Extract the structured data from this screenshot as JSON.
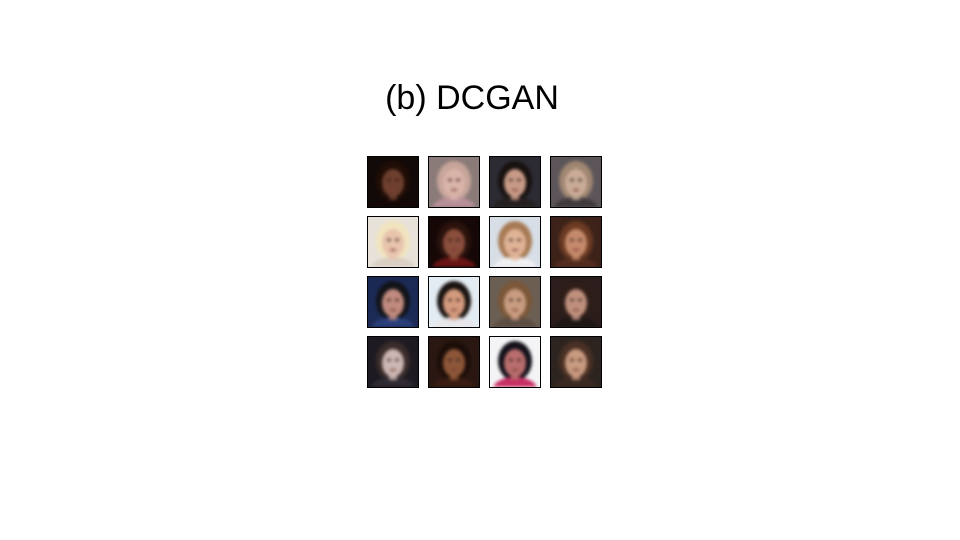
{
  "title": "(b) DCGAN",
  "samples": [
    {
      "row": 1,
      "col": 1,
      "bg": "#120a08",
      "hair": "#1f0d06",
      "skin": "#6e3f2e",
      "shirt": "#140806"
    },
    {
      "row": 1,
      "col": 2,
      "bg": "#8a7a78",
      "hair": "#c7a59a",
      "skin": "#d9b4a8",
      "shirt": "#b8909a"
    },
    {
      "row": 1,
      "col": 3,
      "bg": "#2c2a33",
      "hair": "#17110f",
      "skin": "#c79a86",
      "shirt": "#25201f"
    },
    {
      "row": 1,
      "col": 4,
      "bg": "#5c5559",
      "hair": "#9f8671",
      "skin": "#c9ab98",
      "shirt": "#3f3a3c"
    },
    {
      "row": 2,
      "col": 1,
      "bg": "#e7e2d9",
      "hair": "#f2e4bf",
      "skin": "#e8c4ad",
      "shirt": "#d9cfc3"
    },
    {
      "row": 2,
      "col": 2,
      "bg": "#160807",
      "hair": "#2b120c",
      "skin": "#8a4e3c",
      "shirt": "#6a1414"
    },
    {
      "row": 2,
      "col": 3,
      "bg": "#d7dee6",
      "hair": "#a77a55",
      "skin": "#e0b397",
      "shirt": "#f0f0f2"
    },
    {
      "row": 2,
      "col": 4,
      "bg": "#3c2219",
      "hair": "#6b3a22",
      "skin": "#c58a6b",
      "shirt": "#542d1f"
    },
    {
      "row": 3,
      "col": 1,
      "bg": "#1b2a55",
      "hair": "#121317",
      "skin": "#c08a7e",
      "shirt": "#2a3f7a"
    },
    {
      "row": 3,
      "col": 2,
      "bg": "#e3ecf2",
      "hair": "#1a1311",
      "skin": "#d39a7d",
      "shirt": "#e8e6ea"
    },
    {
      "row": 3,
      "col": 3,
      "bg": "#6b5e52",
      "hair": "#7b5738",
      "skin": "#c99c80",
      "shirt": "#5c4c42"
    },
    {
      "row": 3,
      "col": 4,
      "bg": "#2a1d1b",
      "hair": "#2e1d18",
      "skin": "#bf8f7c",
      "shirt": "#1e1716"
    },
    {
      "row": 4,
      "col": 1,
      "bg": "#1d1a22",
      "hair": "#3a2c2a",
      "skin": "#cdb6b3",
      "shirt": "#2f2a33"
    },
    {
      "row": 4,
      "col": 2,
      "bg": "#2a1712",
      "hair": "#1c0d08",
      "skin": "#8d5638",
      "shirt": "#3a1c12"
    },
    {
      "row": 4,
      "col": 3,
      "bg": "#f4f4f6",
      "hair": "#14111a",
      "skin": "#b86d6c",
      "shirt": "#c72f63"
    },
    {
      "row": 4,
      "col": 4,
      "bg": "#2d2420",
      "hair": "#4a3024",
      "skin": "#c89a80",
      "shirt": "#3b2a22"
    }
  ]
}
